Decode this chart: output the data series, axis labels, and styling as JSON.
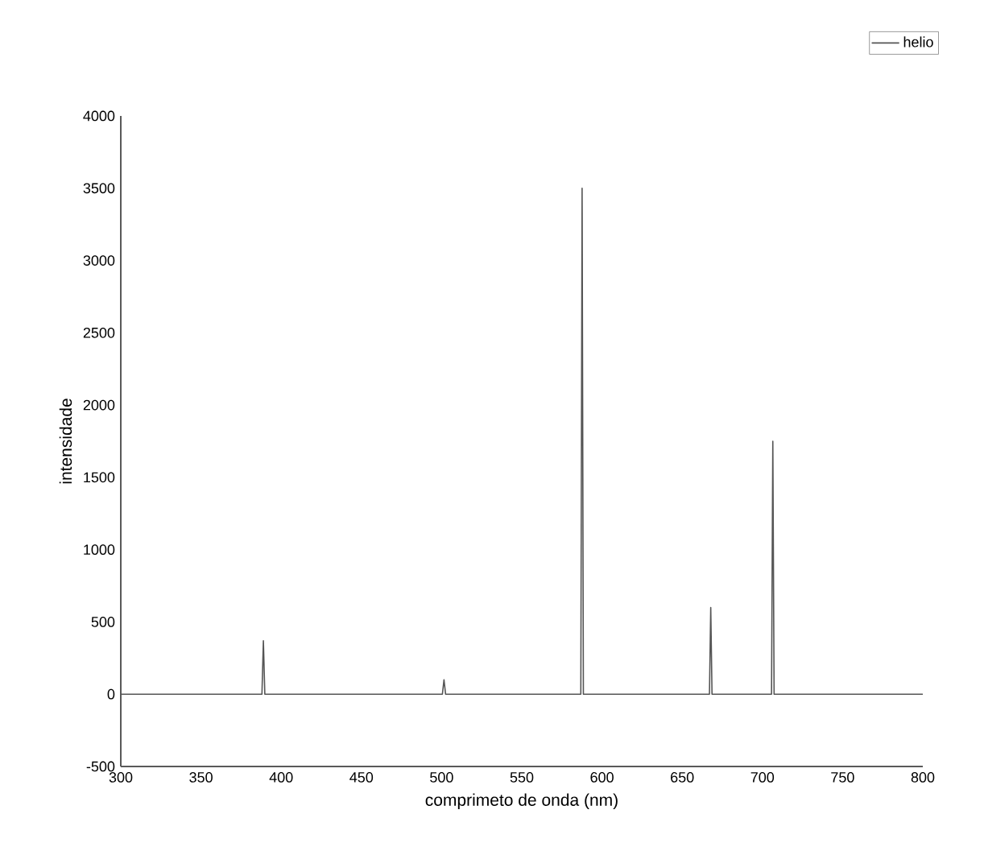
{
  "chart_data": {
    "type": "line",
    "xlabel": "comprimeto de onda (nm)",
    "ylabel": "intensidade",
    "xlim": [
      300,
      800
    ],
    "ylim": [
      -500,
      4000
    ],
    "xticks": [
      300,
      350,
      400,
      450,
      500,
      550,
      600,
      650,
      700,
      750,
      800
    ],
    "yticks": [
      -500,
      0,
      500,
      1000,
      1500,
      2000,
      2500,
      3000,
      3500,
      4000
    ],
    "legend": "top right",
    "grid": false,
    "marker": "none",
    "line_style": "solid",
    "series": [
      {
        "name": "helio",
        "color": "#555555",
        "x": [
          300,
          388,
          388.9,
          389.8,
          500.5,
          501.5,
          502.5,
          586.8,
          587.6,
          588.4,
          667,
          667.8,
          668.6,
          705.7,
          706.5,
          707.3,
          800
        ],
        "values": [
          0,
          0,
          370,
          0,
          0,
          100,
          0,
          0,
          3500,
          0,
          0,
          600,
          0,
          0,
          1750,
          0,
          0
        ]
      }
    ]
  }
}
